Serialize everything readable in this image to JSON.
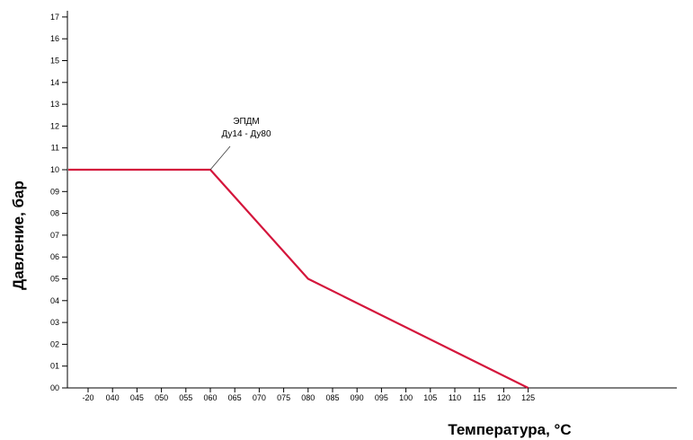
{
  "chart_data": {
    "type": "line",
    "title": "",
    "xlabel": "Температура,  °C",
    "ylabel": "Давление, бар",
    "x_categories": [
      "-20",
      "040",
      "045",
      "050",
      "055",
      "060",
      "065",
      "070",
      "075",
      "080",
      "085",
      "090",
      "095",
      "100",
      "105",
      "110",
      "115",
      "120",
      "125"
    ],
    "y_tick_labels": [
      "00",
      "01",
      "02",
      "03",
      "04",
      "05",
      "06",
      "07",
      "08",
      "09",
      "10",
      "11",
      "12",
      "13",
      "14",
      "15",
      "16",
      "17"
    ],
    "ylim": [
      0,
      17.5
    ],
    "grid": false,
    "series": [
      {
        "color": "#d4163c",
        "points": [
          {
            "x": "-20",
            "y": 10
          },
          {
            "x": "060",
            "y": 10
          },
          {
            "x": "080",
            "y": 5
          },
          {
            "x": "125",
            "y": 0
          }
        ]
      }
    ],
    "annotations": [
      {
        "lines": [
          "ЭПДМ",
          "Ду14 - Ду80"
        ],
        "at": {
          "x": "060",
          "y": 10
        }
      }
    ]
  }
}
